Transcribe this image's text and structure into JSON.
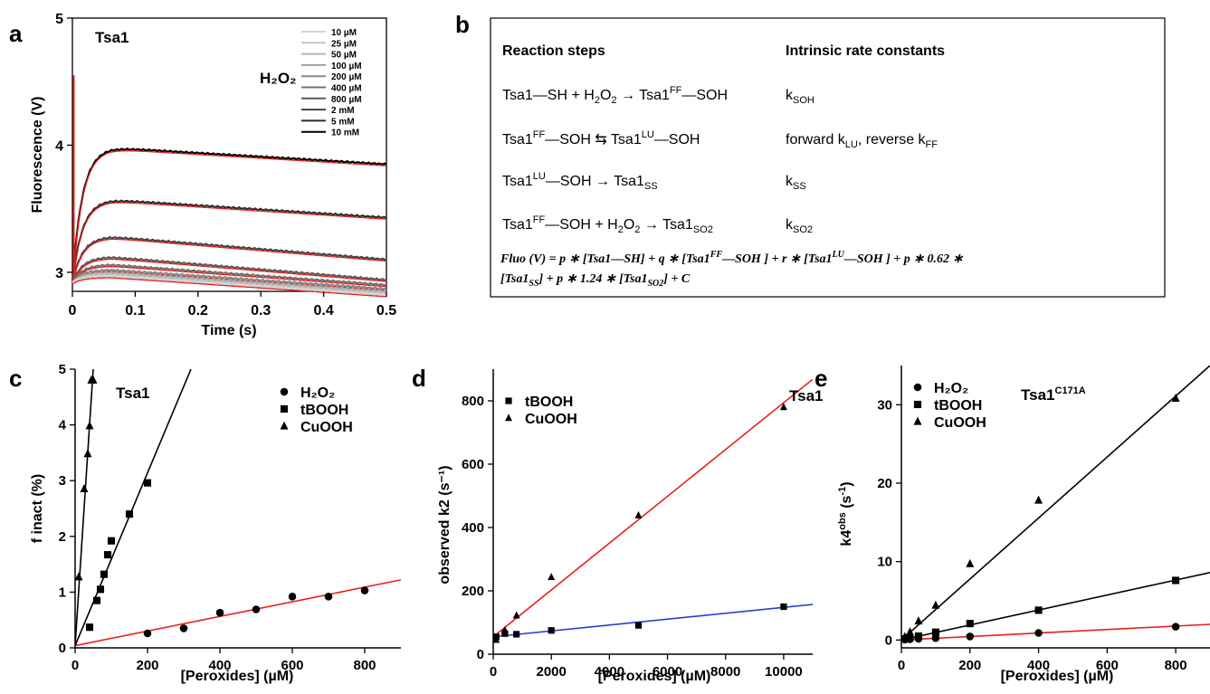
{
  "panel_labels": {
    "a": "a",
    "b": "b",
    "c": "c",
    "d": "d",
    "e": "e"
  },
  "panel_a": {
    "inset_title": "Tsa1",
    "legend_label": "H₂O₂",
    "legend_entries": [
      "10 µM",
      "25 µM",
      "50 µM",
      "100 µM",
      "200 µM",
      "400 µM",
      "800 µM",
      "2 mM",
      "5 mM",
      "10 mM"
    ],
    "legend_colors": [
      "#d6d6d6",
      "#c6c6c6",
      "#b4b4b4",
      "#9f9f9f",
      "#888888",
      "#707070",
      "#595959",
      "#434343",
      "#2c2c2c",
      "#000000"
    ],
    "fit_color": "#e8201c"
  },
  "panel_b": {
    "col1_header": "Reaction steps",
    "col2_header": "Intrinsic rate constants",
    "rows": [
      {
        "reaction": "Tsa1—SH + H₂O₂ → Tsa1ᶠᶠ—SOH",
        "constant": "k_SOH"
      },
      {
        "reaction": "Tsa1ᶠᶠ—SOH ⇆ Tsa1ᴸᵁ—SOH",
        "constant": "forward k_LU, reverse k_FF"
      },
      {
        "reaction": "Tsa1ᴸᵁ—SOH → Tsa1_SS",
        "constant": "k_SS"
      },
      {
        "reaction": "Tsa1ᶠᶠ—SOH + H₂O₂ → Tsa1_SO2",
        "constant": "k_SO2"
      }
    ],
    "equation_line1": "Fluo (V) = p * [Tsa1—SH] + q * [Tsa1^FF—SOH] + r * [Tsa1^LU—SOH] + p * 0.62 *",
    "equation_line2": "[Tsa1_SS] + p * 1.24 * [Tsa1_SO2] + C"
  },
  "chart_data": [
    {
      "panel": "a",
      "type": "line",
      "title": "Tsa1",
      "xlabel": "Time (s)",
      "ylabel": "Fluorescence (V)",
      "xlim": [
        0,
        0.5
      ],
      "ylim": [
        2.85,
        5
      ],
      "xticks": [
        "0",
        "0.1",
        "0.2",
        "0.3",
        "0.4",
        "0.5"
      ],
      "yticks": [
        "3",
        "4",
        "5"
      ],
      "legend": "top-right",
      "series": [
        {
          "name": "10 mM",
          "peak": 3.98,
          "end": 3.85
        },
        {
          "name": "5 mM",
          "peak": 3.57,
          "end": 3.43
        },
        {
          "name": "2 mM",
          "peak": 3.28,
          "end": 3.1
        },
        {
          "name": "800 µM",
          "peak": 3.12,
          "end": 2.94
        },
        {
          "name": "400 µM",
          "peak": 3.06,
          "end": 2.9
        },
        {
          "name": "200 µM",
          "peak": 3.02,
          "end": 2.87
        },
        {
          "name": "100 µM",
          "peak": 3.0,
          "end": 2.85
        },
        {
          "name": "50 µM",
          "peak": 2.99,
          "end": 2.84
        },
        {
          "name": "25 µM",
          "peak": 2.98,
          "end": 2.83
        },
        {
          "name": "10 µM",
          "peak": 2.97,
          "end": 2.82
        }
      ]
    },
    {
      "panel": "c",
      "type": "scatter",
      "title": "Tsa1",
      "xlabel": "[Peroxides] (µM)",
      "ylabel": "f inact (%)",
      "xlim": [
        0,
        900
      ],
      "ylim": [
        0,
        5
      ],
      "xticks": [
        "0",
        "200",
        "400",
        "600",
        "800"
      ],
      "yticks": [
        "0",
        "1",
        "2",
        "3",
        "4",
        "5"
      ],
      "legend": "top-right",
      "series": [
        {
          "name": "H₂O₂",
          "marker": "circle",
          "color": "#e8201c",
          "x": [
            200,
            300,
            400,
            500,
            600,
            700,
            800
          ],
          "y": [
            0.26,
            0.35,
            0.63,
            0.69,
            0.92,
            0.92,
            1.03
          ],
          "fit": [
            [
              0,
              0.04
            ],
            [
              900,
              1.22
            ]
          ]
        },
        {
          "name": "tBOOH",
          "marker": "square",
          "color": "#000000",
          "x": [
            40,
            60,
            70,
            80,
            90,
            100,
            150,
            200
          ],
          "y": [
            0.37,
            0.85,
            1.05,
            1.32,
            1.67,
            1.92,
            2.4,
            2.96
          ],
          "fit": [
            [
              0,
              0.04
            ],
            [
              320,
              5
            ]
          ]
        },
        {
          "name": "CuOOH",
          "marker": "triangle",
          "color": "#000000",
          "x": [
            10,
            25,
            35,
            40,
            45,
            50
          ],
          "y": [
            1.27,
            2.85,
            3.48,
            3.98,
            4.8,
            4.8
          ],
          "fit": [
            [
              0,
              0.04
            ],
            [
              50,
              5
            ]
          ]
        }
      ]
    },
    {
      "panel": "d",
      "type": "scatter",
      "title": "Tsa1",
      "xlabel": "[Peroxides] (µM)",
      "ylabel": "observed k2 (s⁻¹)",
      "xlim": [
        0,
        11000
      ],
      "ylim": [
        0,
        900
      ],
      "xticks": [
        "0",
        "2000",
        "4000",
        "6000",
        "8000",
        "10000"
      ],
      "yticks": [
        "0",
        "200",
        "400",
        "600",
        "800"
      ],
      "legend": "top-left",
      "series": [
        {
          "name": "tBOOH",
          "marker": "square",
          "color": "#2f3bd6",
          "x": [
            100,
            400,
            800,
            2000,
            5000,
            10000
          ],
          "y": [
            55,
            65,
            63,
            75,
            91,
            150
          ],
          "fit": [
            [
              0,
              55
            ],
            [
              11000,
              157
            ]
          ]
        },
        {
          "name": "CuOOH",
          "marker": "triangle",
          "color": "#e8201c",
          "x": [
            100,
            400,
            800,
            2000,
            5000,
            10000
          ],
          "y": [
            45,
            75,
            122,
            243,
            438,
            780
          ],
          "fit": [
            [
              0,
              55
            ],
            [
              11000,
              868
            ]
          ]
        }
      ]
    },
    {
      "panel": "e",
      "type": "scatter",
      "title": "Tsa1ᶜ¹⁷¹ᴬ",
      "xlabel": "[Peroxides] (µM)",
      "ylabel": "k4ᵒᵇˢ (s⁻¹)",
      "xlim": [
        0,
        900
      ],
      "ylim": [
        -1,
        35
      ],
      "xticks": [
        "0",
        "200",
        "400",
        "600",
        "800"
      ],
      "yticks": [
        "0",
        "10",
        "20",
        "30"
      ],
      "legend": "top-left",
      "series": [
        {
          "name": "H₂O₂",
          "marker": "circle",
          "color": "#e8201c",
          "x": [
            10,
            25,
            50,
            100,
            200,
            400,
            800
          ],
          "y": [
            0.05,
            0.1,
            0.15,
            0.25,
            0.45,
            0.9,
            1.7
          ],
          "fit": [
            [
              0,
              0
            ],
            [
              900,
              2.0
            ]
          ]
        },
        {
          "name": "tBOOH",
          "marker": "square",
          "color": "#000000",
          "x": [
            10,
            25,
            50,
            100,
            200,
            400,
            800
          ],
          "y": [
            0.15,
            0.3,
            0.5,
            1.0,
            2.1,
            3.8,
            7.6
          ],
          "fit": [
            [
              0,
              0
            ],
            [
              900,
              8.6
            ]
          ]
        },
        {
          "name": "CuOOH",
          "marker": "triangle",
          "color": "#000000",
          "x": [
            10,
            25,
            50,
            100,
            200,
            400,
            800
          ],
          "y": [
            0.4,
            1.0,
            2.4,
            4.4,
            9.7,
            17.8,
            30.8
          ],
          "fit": [
            [
              0,
              0
            ],
            [
              900,
              35
            ]
          ]
        }
      ]
    }
  ]
}
